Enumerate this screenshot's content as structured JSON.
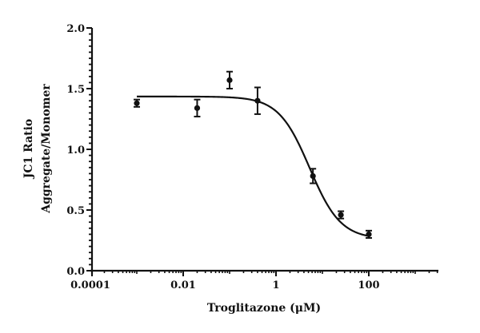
{
  "chart_data": {
    "type": "scatter",
    "subtype": "dose-response with fitted sigmoid curve and error bars",
    "title": "",
    "xlabel": "Troglitazone (μM)",
    "ylabel_line1": "JC1 Ratio",
    "ylabel_line2": "Aggregate/Monomer",
    "xscale": "log",
    "xlim": [
      0.0001,
      3000
    ],
    "ylim": [
      0.0,
      2.0
    ],
    "x_ticks": [
      0.0001,
      0.01,
      1,
      100
    ],
    "x_tick_labels": [
      "0.0001",
      "0.01",
      "1",
      "100"
    ],
    "y_ticks": [
      0.0,
      0.5,
      1.0,
      1.5,
      2.0
    ],
    "y_tick_labels": [
      "0.0",
      "0.5",
      "1.0",
      "1.5",
      "2.0"
    ],
    "y_minor_step": 0.05,
    "grid": false,
    "legend": null,
    "series": [
      {
        "name": "Troglitazone",
        "x": [
          0.001,
          0.02,
          0.1,
          0.4,
          6.25,
          25,
          100
        ],
        "y": [
          1.38,
          1.34,
          1.57,
          1.4,
          0.78,
          0.46,
          0.3
        ],
        "error": [
          0.03,
          0.07,
          0.07,
          0.11,
          0.06,
          0.03,
          0.03
        ]
      }
    ],
    "fit": {
      "model": "4PL",
      "top": 1.435,
      "bottom": 0.26,
      "ic50": 5.3,
      "hill": 1.3,
      "x_range": [
        0.001,
        100
      ]
    }
  },
  "axes": {
    "x_title": "Troglitazone (μM)",
    "y_title_line1": "JC1 Ratio",
    "y_title_line2": "Aggregate/Monomer"
  },
  "colors": {
    "ink": "#111111",
    "background": "#ffffff"
  }
}
